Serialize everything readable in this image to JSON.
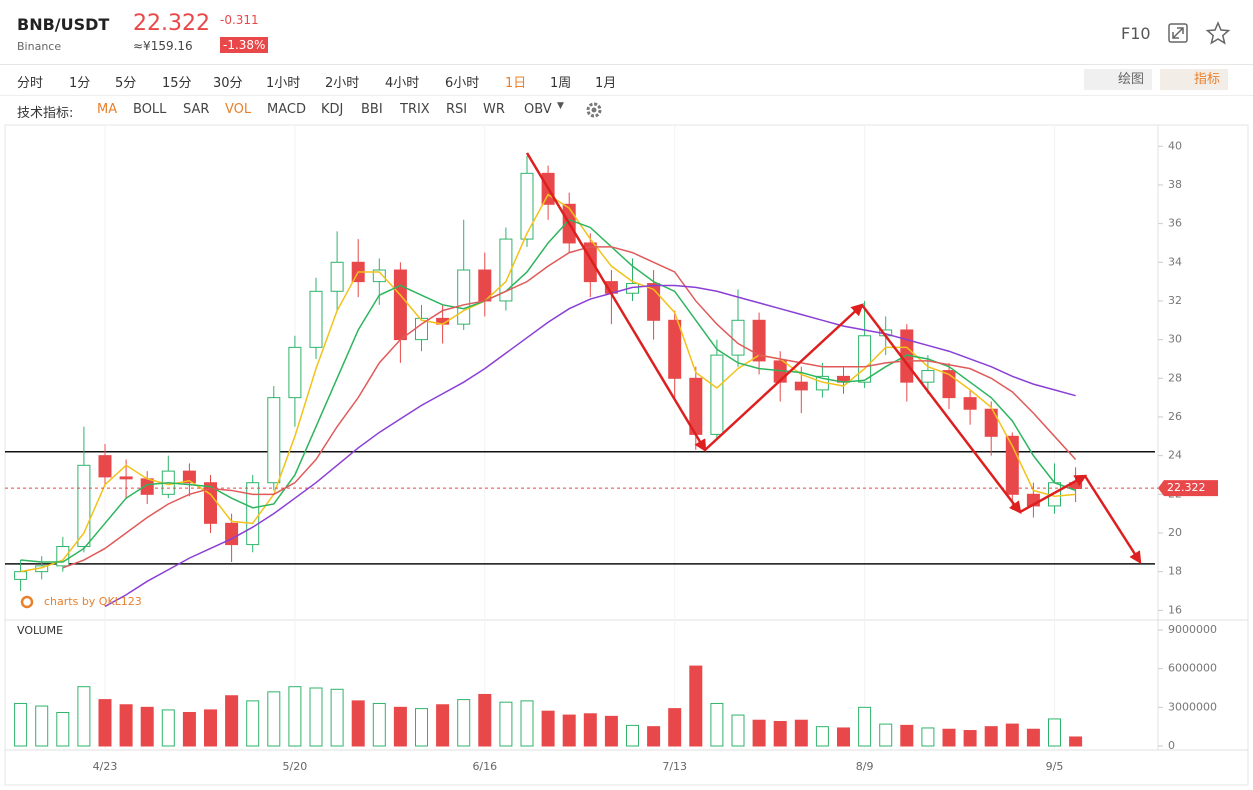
{
  "header": {
    "pair": "BNB/USDT",
    "exchange": "Binance",
    "change": -0.311,
    "cny": "≈¥159.16",
    "change_pct": "-1.38%",
    "f10": "F10"
  },
  "toolbar": {
    "timeframes": [
      "分时",
      "1分",
      "5分",
      "15分",
      "30分",
      "1小时",
      "2小时",
      "4小时",
      "6小时",
      "1日",
      "1周",
      "1月"
    ],
    "active": 9,
    "draw": "绘图",
    "indicator": "指标"
  },
  "indicators": {
    "label": "技术指标:",
    "items": [
      "MA",
      "BOLL",
      "SAR",
      "VOL",
      "MACD",
      "KDJ",
      "BBI",
      "TRIX",
      "RSI",
      "WR",
      "OBV"
    ],
    "active": [
      0,
      3
    ]
  },
  "chart_data": {
    "type": "candlestick",
    "watermark": "charts by QKL123",
    "volume_label": "VOLUME",
    "last_price": 22.322,
    "up_color": "#2fb36b",
    "down_color": "#e8484a",
    "categories": [
      null,
      null,
      null,
      null,
      "4/23",
      null,
      null,
      null,
      null,
      null,
      null,
      null,
      null,
      "5/20",
      null,
      null,
      null,
      null,
      null,
      null,
      null,
      null,
      "6/16",
      null,
      null,
      null,
      null,
      null,
      null,
      null,
      null,
      "7/13",
      null,
      null,
      null,
      null,
      null,
      null,
      null,
      null,
      "8/9",
      null,
      null,
      null,
      null,
      null,
      null,
      null,
      null,
      "9/5",
      null
    ],
    "candles": [
      [
        17.6,
        18.6,
        17.0,
        18.0
      ],
      [
        18.0,
        18.8,
        17.6,
        18.3
      ],
      [
        18.3,
        19.8,
        18.0,
        19.3
      ],
      [
        19.3,
        25.5,
        19.0,
        23.5
      ],
      [
        24.0,
        24.6,
        22.4,
        22.9
      ],
      [
        22.9,
        23.8,
        21.8,
        22.8
      ],
      [
        22.8,
        23.2,
        21.5,
        22.0
      ],
      [
        22.0,
        24.0,
        21.8,
        23.2
      ],
      [
        23.2,
        23.6,
        21.9,
        22.6
      ],
      [
        22.6,
        23.0,
        20.0,
        20.5
      ],
      [
        20.5,
        21.0,
        18.5,
        19.4
      ],
      [
        19.4,
        23.0,
        19.0,
        22.6
      ],
      [
        22.6,
        27.6,
        22.2,
        27.0
      ],
      [
        27.0,
        30.2,
        25.5,
        29.6
      ],
      [
        29.6,
        33.2,
        29.0,
        32.5
      ],
      [
        32.5,
        35.6,
        31.5,
        34.0
      ],
      [
        34.0,
        35.2,
        32.2,
        33.0
      ],
      [
        33.0,
        34.2,
        31.8,
        33.6
      ],
      [
        33.6,
        34.0,
        28.8,
        30.0
      ],
      [
        30.0,
        31.8,
        29.4,
        31.1
      ],
      [
        31.1,
        31.8,
        29.8,
        30.8
      ],
      [
        30.8,
        36.2,
        30.5,
        33.6
      ],
      [
        33.6,
        34.5,
        31.2,
        32.0
      ],
      [
        32.0,
        35.8,
        31.5,
        35.2
      ],
      [
        35.2,
        39.5,
        34.8,
        38.6
      ],
      [
        38.6,
        39.0,
        36.2,
        37.0
      ],
      [
        37.0,
        37.6,
        34.5,
        35.0
      ],
      [
        35.0,
        35.5,
        32.2,
        33.0
      ],
      [
        33.0,
        33.6,
        30.8,
        32.4
      ],
      [
        32.4,
        34.2,
        32.0,
        32.9
      ],
      [
        32.9,
        33.6,
        30.0,
        31.0
      ],
      [
        31.0,
        31.5,
        27.0,
        28.0
      ],
      [
        28.0,
        28.6,
        24.3,
        25.1
      ],
      [
        25.1,
        30.0,
        24.8,
        29.2
      ],
      [
        29.2,
        32.6,
        28.6,
        31.0
      ],
      [
        31.0,
        31.4,
        28.2,
        28.9
      ],
      [
        28.9,
        29.4,
        26.8,
        27.8
      ],
      [
        27.8,
        28.6,
        26.2,
        27.4
      ],
      [
        27.4,
        28.8,
        27.0,
        28.1
      ],
      [
        28.1,
        28.6,
        27.2,
        27.8
      ],
      [
        27.8,
        32.0,
        27.5,
        30.2
      ],
      [
        30.2,
        31.2,
        29.2,
        30.5
      ],
      [
        30.5,
        30.8,
        26.8,
        27.8
      ],
      [
        27.8,
        29.2,
        27.2,
        28.4
      ],
      [
        28.4,
        28.8,
        26.4,
        27.0
      ],
      [
        27.0,
        27.4,
        25.6,
        26.4
      ],
      [
        26.4,
        26.8,
        24.0,
        25.0
      ],
      [
        25.0,
        25.2,
        21.2,
        22.0
      ],
      [
        22.0,
        22.6,
        20.8,
        21.4
      ],
      [
        21.4,
        23.6,
        21.0,
        22.6
      ],
      [
        22.6,
        23.4,
        21.6,
        22.3
      ]
    ],
    "volume": [
      3300000,
      3100000,
      2600000,
      4600000,
      3600000,
      3200000,
      3000000,
      2800000,
      2600000,
      2800000,
      3900000,
      3500000,
      4200000,
      4600000,
      4500000,
      4400000,
      3500000,
      3300000,
      3000000,
      2900000,
      3200000,
      3600000,
      4000000,
      3400000,
      3500000,
      2700000,
      2400000,
      2500000,
      2300000,
      1600000,
      1500000,
      2900000,
      6200000,
      3300000,
      2400000,
      2000000,
      1900000,
      2000000,
      1500000,
      1400000,
      3000000,
      1700000,
      1600000,
      1400000,
      1300000,
      1200000,
      1500000,
      1700000,
      1300000,
      2100000,
      700000
    ],
    "series": [
      {
        "color": "#f2c21b",
        "values": [
          18.0,
          18.2,
          18.6,
          20.0,
          22.5,
          23.5,
          22.8,
          22.5,
          22.7,
          22.0,
          20.6,
          20.5,
          22.0,
          25.0,
          28.5,
          31.5,
          33.5,
          33.5,
          32.3,
          31.0,
          30.8,
          31.5,
          32.0,
          33.0,
          35.5,
          37.5,
          36.8,
          35.2,
          33.8,
          33.0,
          32.6,
          31.4,
          28.3,
          27.5,
          28.5,
          29.2,
          29.0,
          28.2,
          27.8,
          27.6,
          28.5,
          29.6,
          29.6,
          28.6,
          28.2,
          27.4,
          26.5,
          24.5,
          22.2,
          21.9,
          22.0
        ]
      },
      {
        "color": "#2db55d",
        "values": [
          18.6,
          18.5,
          18.5,
          19.2,
          20.5,
          21.8,
          22.5,
          22.6,
          22.5,
          22.4,
          21.8,
          21.3,
          21.5,
          23.0,
          25.5,
          28.0,
          30.5,
          32.3,
          32.8,
          32.3,
          31.8,
          31.6,
          32.0,
          32.5,
          33.5,
          35.0,
          36.2,
          35.8,
          34.8,
          33.8,
          33.0,
          32.5,
          31.0,
          29.5,
          28.8,
          28.5,
          28.4,
          28.3,
          28.0,
          27.8,
          27.9,
          28.6,
          29.2,
          29.0,
          28.6,
          27.8,
          27.0,
          25.8,
          24.0,
          22.6,
          22.2
        ]
      },
      {
        "color": "#e05a5a",
        "values": [
          null,
          null,
          18.2,
          18.6,
          19.2,
          20.0,
          20.8,
          21.5,
          22.0,
          22.3,
          22.2,
          22.0,
          22.0,
          22.6,
          23.8,
          25.5,
          27.0,
          28.8,
          30.0,
          30.8,
          31.5,
          31.8,
          32.0,
          32.5,
          33.0,
          33.8,
          34.5,
          34.8,
          34.8,
          34.5,
          34.0,
          33.5,
          32.0,
          30.8,
          29.8,
          29.2,
          29.0,
          28.8,
          28.6,
          28.6,
          28.6,
          28.8,
          28.9,
          28.9,
          28.7,
          28.5,
          28.0,
          27.3,
          26.2,
          25.0,
          23.8
        ]
      },
      {
        "color": "#8a3fd6",
        "values": [
          null,
          null,
          null,
          null,
          16.2,
          16.8,
          17.5,
          18.1,
          18.7,
          19.2,
          19.7,
          20.3,
          21.0,
          21.8,
          22.6,
          23.5,
          24.4,
          25.2,
          25.9,
          26.6,
          27.2,
          27.8,
          28.5,
          29.3,
          30.1,
          30.9,
          31.6,
          32.1,
          32.4,
          32.7,
          32.8,
          32.8,
          32.7,
          32.5,
          32.2,
          31.9,
          31.6,
          31.3,
          31.0,
          30.7,
          30.5,
          30.3,
          30.0,
          29.7,
          29.4,
          29.0,
          28.6,
          28.1,
          27.7,
          27.4,
          27.1
        ]
      }
    ],
    "hlines": [
      24.2,
      18.4
    ],
    "ylim": [
      15.5,
      41.1
    ],
    "yticks": [
      16,
      18,
      20,
      22,
      24,
      26,
      28,
      30,
      32,
      34,
      36,
      38,
      40
    ],
    "vlim": [
      0,
      9000000
    ],
    "vticks": [
      0,
      3000000,
      6000000,
      9000000
    ]
  }
}
